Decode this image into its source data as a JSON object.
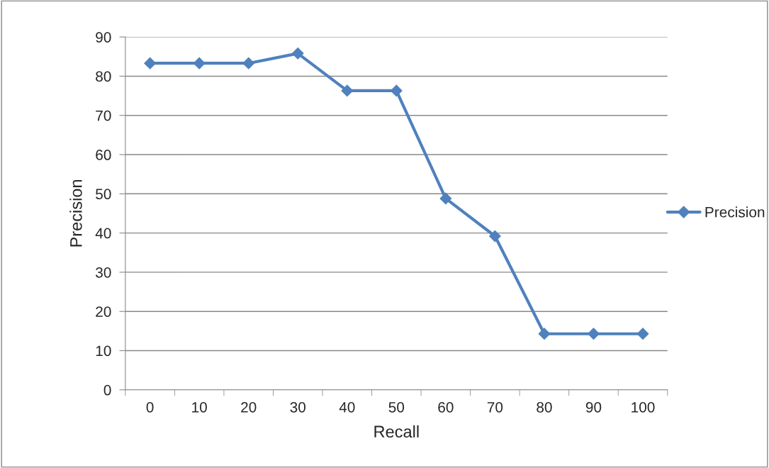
{
  "chart_data": {
    "type": "line",
    "xlabel": "Recall",
    "ylabel": "Precision",
    "categories": [
      "0",
      "10",
      "20",
      "30",
      "40",
      "50",
      "60",
      "70",
      "80",
      "90",
      "100"
    ],
    "series": [
      {
        "name": "Precision",
        "color": "#4f81bd",
        "values": [
          83.3,
          83.3,
          83.3,
          85.8,
          76.3,
          76.3,
          48.8,
          39.2,
          14.3,
          14.3,
          14.3
        ]
      }
    ],
    "ylim": [
      0,
      90
    ],
    "yticks": [
      0,
      10,
      20,
      30,
      40,
      50,
      60,
      70,
      80,
      90
    ],
    "grid": "y",
    "legend": "right",
    "marker": "diamond",
    "line_style": "solid"
  }
}
